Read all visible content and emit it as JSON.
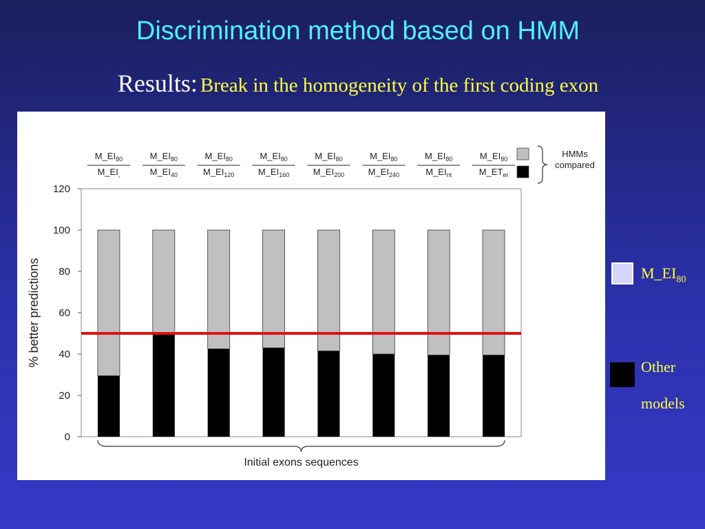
{
  "slide": {
    "title": "Discrimination method based on HMM",
    "subtitle_lead": "Results:",
    "subtitle_text": "Break in the homogeneity of the first coding exon"
  },
  "legend": {
    "items": [
      {
        "label": "M_EI",
        "sub": "80",
        "color": "#d6d6ff"
      },
      {
        "label_lines": [
          "Other",
          "models"
        ],
        "color": "#000000"
      }
    ]
  },
  "chart_data": {
    "type": "bar",
    "stacked": true,
    "ylabel": "% better predictions",
    "xlabel": "Initial exons sequences",
    "ylim": [
      0,
      120
    ],
    "yticks": [
      0,
      20,
      40,
      60,
      80,
      100,
      120
    ],
    "threshold": 50,
    "threshold_color": "#e01010",
    "categories": [
      {
        "top": "M_EI",
        "top_sub": "80",
        "bottom": "M_EI",
        "bottom_sub": ","
      },
      {
        "top": "M_EI",
        "top_sub": "80",
        "bottom": "M_EI",
        "bottom_sub": "40"
      },
      {
        "top": "M_EI",
        "top_sub": "80",
        "bottom": "M_EI",
        "bottom_sub": "120"
      },
      {
        "top": "M_EI",
        "top_sub": "80",
        "bottom": "M_EI",
        "bottom_sub": "160"
      },
      {
        "top": "M_EI",
        "top_sub": "80",
        "bottom": "M_EI",
        "bottom_sub": "200"
      },
      {
        "top": "M_EI",
        "top_sub": "80",
        "bottom": "M_EI",
        "bottom_sub": "240"
      },
      {
        "top": "M_EI",
        "top_sub": "80",
        "bottom": "M_EI",
        "bottom_sub": "nt"
      },
      {
        "top": "M_EI",
        "top_sub": "80",
        "bottom": "M_ET",
        "bottom_sub": "er"
      }
    ],
    "series": [
      {
        "values": [
          29.5,
          49.5,
          42.5,
          43,
          41.5,
          40,
          39.5,
          39.5
        ],
        "color": "#000000"
      },
      {
        "values": [
          70.5,
          50.5,
          57.5,
          57,
          58.5,
          60,
          60.5,
          60.5
        ],
        "color": "#c0c0c0"
      }
    ],
    "key": {
      "items": [
        {
          "color": "#c0c0c0"
        },
        {
          "color": "#000000"
        }
      ],
      "label_lines": [
        "HMMs",
        "compared"
      ]
    },
    "grid": false
  }
}
